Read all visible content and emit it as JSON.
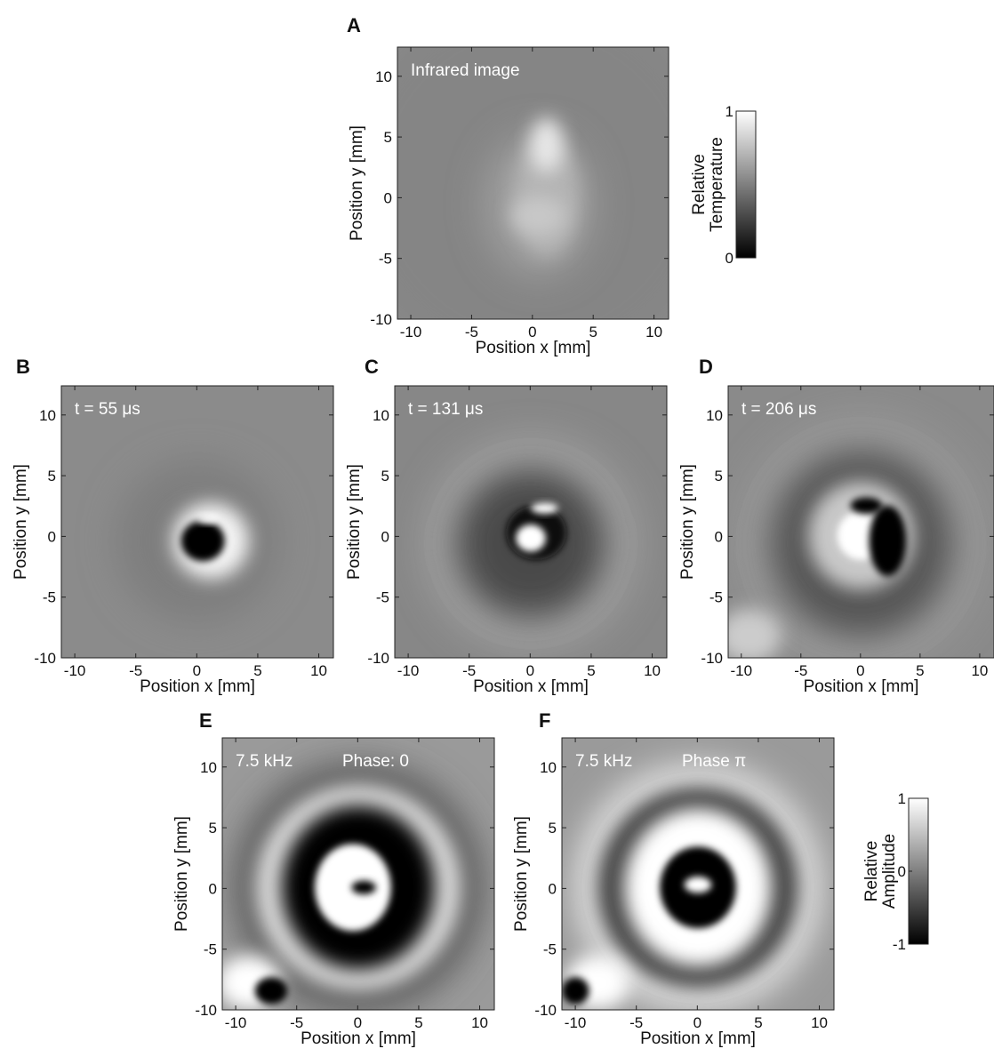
{
  "chart_data": [
    {
      "type": "image",
      "panel": "A",
      "annotations": [
        "Infrared image"
      ],
      "x_label": "Position x [mm]",
      "y_label": "Position y [mm]",
      "xlim": [
        -11.1,
        11.2
      ],
      "ylim": [
        -10,
        12.4
      ],
      "xticks": [
        -10,
        -5,
        0,
        5,
        10
      ],
      "yticks": [
        -10,
        -5,
        0,
        5,
        10
      ]
    },
    {
      "type": "colorbar",
      "label": [
        "Relative",
        "Temperature"
      ],
      "lim": [
        0,
        1
      ],
      "ticks": [
        0,
        1
      ]
    },
    {
      "type": "image",
      "panel": "B",
      "annotations": [
        "t = 55 μs"
      ],
      "x_label": "Position x [mm]",
      "y_label": "Position y [mm]",
      "xlim": [
        -11.1,
        11.2
      ],
      "ylim": [
        -10,
        12.4
      ],
      "xticks": [
        -10,
        -5,
        0,
        5,
        10
      ],
      "yticks": [
        -10,
        -5,
        0,
        5,
        10
      ]
    },
    {
      "type": "image",
      "panel": "C",
      "annotations": [
        "t = 131 μs"
      ],
      "x_label": "Position x [mm]",
      "y_label": "Position y [mm]",
      "xlim": [
        -11.1,
        11.2
      ],
      "ylim": [
        -10,
        12.4
      ],
      "xticks": [
        -10,
        -5,
        0,
        5,
        10
      ],
      "yticks": [
        -10,
        -5,
        0,
        5,
        10
      ]
    },
    {
      "type": "image",
      "panel": "D",
      "annotations": [
        "t = 206 μs"
      ],
      "x_label": "Position x [mm]",
      "y_label": "Position y [mm]",
      "xlim": [
        -11.1,
        11.2
      ],
      "ylim": [
        -10,
        12.4
      ],
      "xticks": [
        -10,
        -5,
        0,
        5,
        10
      ],
      "yticks": [
        -10,
        -5,
        0,
        5,
        10
      ]
    },
    {
      "type": "image",
      "panel": "E",
      "annotations": [
        "7.5 kHz",
        "Phase: 0"
      ],
      "x_label": "Position x [mm]",
      "y_label": "Position y [mm]",
      "xlim": [
        -11.1,
        11.2
      ],
      "ylim": [
        -10,
        12.4
      ],
      "xticks": [
        -10,
        -5,
        0,
        5,
        10
      ],
      "yticks": [
        -10,
        -5,
        0,
        5,
        10
      ]
    },
    {
      "type": "image",
      "panel": "F",
      "annotations": [
        "7.5 kHz",
        "Phase π"
      ],
      "x_label": "Position x [mm]",
      "y_label": "Position y [mm]",
      "xlim": [
        -11.1,
        11.2
      ],
      "ylim": [
        -10,
        12.4
      ],
      "xticks": [
        -10,
        -5,
        0,
        5,
        10
      ],
      "yticks": [
        -10,
        -5,
        0,
        5,
        10
      ]
    },
    {
      "type": "colorbar",
      "label": [
        "Relative",
        "Amplitude"
      ],
      "lim": [
        -1,
        1
      ],
      "ticks": [
        -1,
        0,
        1
      ]
    }
  ]
}
